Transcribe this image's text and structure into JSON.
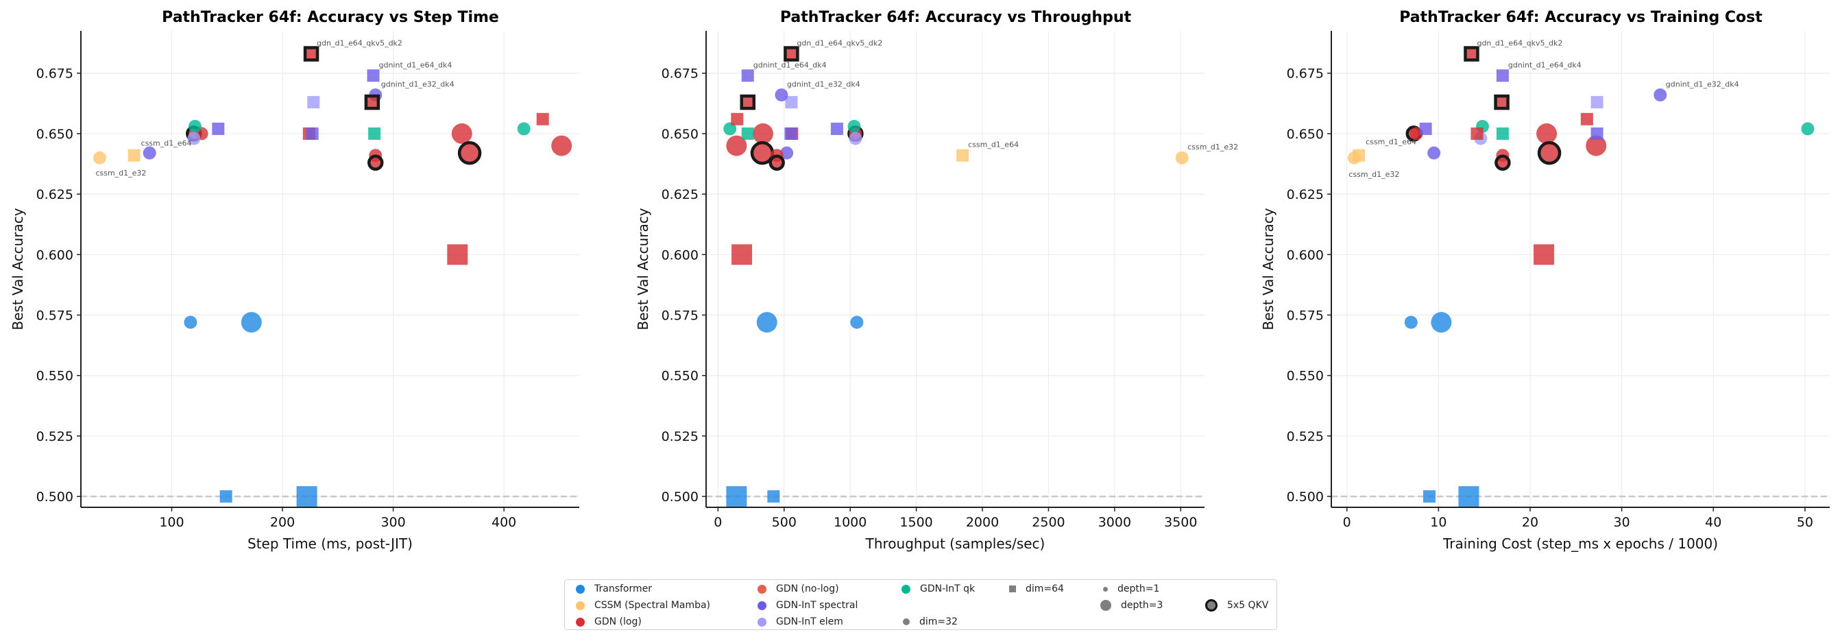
{
  "chart_data": [
    {
      "type": "scatter",
      "title": "PathTracker 64f: Accuracy vs Step Time",
      "xlabel": "Step Time (ms, post-JIT)",
      "ylabel": "Best Val Accuracy",
      "xlim": [
        18,
        468
      ],
      "ylim": [
        0.4955,
        0.6925
      ],
      "xticks": [
        "100",
        "200",
        "300",
        "400"
      ],
      "xtick_values": [
        100,
        200,
        300,
        400
      ],
      "yticks": [
        "0.500",
        "0.525",
        "0.550",
        "0.575",
        "0.600",
        "0.625",
        "0.650",
        "0.675"
      ],
      "ytick_values": [
        0.5,
        0.525,
        0.55,
        0.575,
        0.6,
        0.625,
        0.65,
        0.675
      ],
      "grid": true,
      "reference_line": 0.5,
      "xkey": "step_ms"
    },
    {
      "type": "scatter",
      "title": "PathTracker 64f: Accuracy vs Throughput",
      "xlabel": "Throughput (samples/sec)",
      "ylabel": "Best Val Accuracy",
      "xlim": [
        -90,
        3680
      ],
      "ylim": [
        0.4955,
        0.6925
      ],
      "xticks": [
        "0",
        "500",
        "1000",
        "1500",
        "2000",
        "2500",
        "3000",
        "3500"
      ],
      "xtick_values": [
        0,
        500,
        1000,
        1500,
        2000,
        2500,
        3000,
        3500
      ],
      "yticks": [
        "0.500",
        "0.525",
        "0.550",
        "0.575",
        "0.600",
        "0.625",
        "0.650",
        "0.675"
      ],
      "ytick_values": [
        0.5,
        0.525,
        0.55,
        0.575,
        0.6,
        0.625,
        0.65,
        0.675
      ],
      "grid": true,
      "reference_line": 0.5,
      "xkey": "throughput"
    },
    {
      "type": "scatter",
      "title": "PathTracker 64f: Accuracy vs Training Cost",
      "xlabel": "Training Cost (step_ms x epochs / 1000)",
      "ylabel": "Best Val Accuracy",
      "xlim": [
        -1.7,
        52.7
      ],
      "ylim": [
        0.4955,
        0.6925
      ],
      "xticks": [
        "0",
        "10",
        "20",
        "30",
        "40",
        "50"
      ],
      "xtick_values": [
        0,
        10,
        20,
        30,
        40,
        50
      ],
      "yticks": [
        "0.500",
        "0.525",
        "0.550",
        "0.575",
        "0.600",
        "0.625",
        "0.650",
        "0.675"
      ],
      "ytick_values": [
        0.5,
        0.525,
        0.55,
        0.575,
        0.6,
        0.625,
        0.65,
        0.675
      ],
      "grid": true,
      "reference_line": 0.5,
      "xkey": "cost"
    }
  ],
  "families": {
    "transformer": {
      "label": "Transformer",
      "color": "#1f88e5"
    },
    "cssm": {
      "label": "CSSM (Spectral Mamba)",
      "color": "#ffc46b"
    },
    "gdn_log": {
      "label": "GDN (log)",
      "color": "#d62f35"
    },
    "gdn_nolog": {
      "label": "GDN (no-log)",
      "color": "#e5604e"
    },
    "gdnint_spectral": {
      "label": "GDN-InT spectral",
      "color": "#6b5ce7"
    },
    "gdnint_elem": {
      "label": "GDN-InT elem",
      "color": "#a29bfe"
    },
    "gdnint_qk": {
      "label": "GDN-InT qk",
      "color": "#00b894"
    }
  },
  "points": [
    {
      "family": "transformer",
      "dim": 32,
      "depth": 1,
      "qkv5": false,
      "acc": 0.572,
      "step_ms": 117,
      "throughput": 1050,
      "cost": 7.0,
      "label": ""
    },
    {
      "family": "transformer",
      "dim": 32,
      "depth": 3,
      "qkv5": false,
      "acc": 0.572,
      "step_ms": 172,
      "throughput": 370,
      "cost": 10.3,
      "label": ""
    },
    {
      "family": "transformer",
      "dim": 64,
      "depth": 1,
      "qkv5": false,
      "acc": 0.5,
      "step_ms": 149,
      "throughput": 420,
      "cost": 9.0,
      "label": ""
    },
    {
      "family": "transformer",
      "dim": 64,
      "depth": 3,
      "qkv5": false,
      "acc": 0.5,
      "step_ms": 222,
      "throughput": 140,
      "cost": 13.3,
      "label": ""
    },
    {
      "family": "cssm",
      "dim": 32,
      "depth": 1,
      "qkv5": false,
      "acc": 0.64,
      "step_ms": 35,
      "throughput": 3510,
      "cost": 0.8,
      "label": "cssm_d1_e32"
    },
    {
      "family": "cssm",
      "dim": 64,
      "depth": 1,
      "qkv5": false,
      "acc": 0.641,
      "step_ms": 66,
      "throughput": 1850,
      "cost": 1.3,
      "label": "cssm_d1_e64"
    },
    {
      "family": "gdnint_spectral",
      "dim": 32,
      "depth": 1,
      "qkv5": false,
      "acc": 0.642,
      "step_ms": 80,
      "throughput": 520,
      "cost": 9.5,
      "label": ""
    },
    {
      "family": "gdn_log",
      "dim": 32,
      "depth": 1,
      "qkv5": true,
      "acc": 0.65,
      "step_ms": 120,
      "throughput": 1040,
      "cost": 7.3,
      "label": ""
    },
    {
      "family": "gdn_log",
      "dim": 32,
      "depth": 1,
      "qkv5": false,
      "acc": 0.65,
      "step_ms": 127,
      "throughput": 1040,
      "cost": 7.6,
      "label": ""
    },
    {
      "family": "gdnint_qk",
      "dim": 32,
      "depth": 1,
      "qkv5": false,
      "acc": 0.653,
      "step_ms": 121,
      "throughput": 1030,
      "cost": 14.8,
      "label": ""
    },
    {
      "family": "gdnint_elem",
      "dim": 32,
      "depth": 1,
      "qkv5": false,
      "acc": 0.648,
      "step_ms": 120,
      "throughput": 1040,
      "cost": 14.6,
      "label": ""
    },
    {
      "family": "gdnint_spectral",
      "dim": 64,
      "depth": 1,
      "qkv5": false,
      "acc": 0.652,
      "step_ms": 142,
      "throughput": 900,
      "cost": 8.6,
      "label": ""
    },
    {
      "family": "gdn_log",
      "dim": 64,
      "depth": 1,
      "qkv5": true,
      "acc": 0.683,
      "step_ms": 226,
      "throughput": 555,
      "cost": 13.6,
      "label": "gdn_d1_e64_qkv5_dk2"
    },
    {
      "family": "gdnint_elem",
      "dim": 64,
      "depth": 1,
      "qkv5": false,
      "acc": 0.663,
      "step_ms": 228,
      "throughput": 555,
      "cost": 27.3,
      "label": ""
    },
    {
      "family": "gdn_log",
      "dim": 64,
      "depth": 1,
      "qkv5": false,
      "acc": 0.65,
      "step_ms": 224,
      "throughput": 560,
      "cost": 14.2,
      "label": ""
    },
    {
      "family": "gdnint_spectral",
      "dim": 64,
      "depth": 1,
      "qkv5": false,
      "acc": 0.65,
      "step_ms": 227,
      "throughput": 550,
      "cost": 27.3,
      "label": ""
    },
    {
      "family": "gdnint_spectral",
      "dim": 64,
      "depth": 1,
      "qkv5": false,
      "acc": 0.674,
      "step_ms": 282,
      "throughput": 225,
      "cost": 17.0,
      "label": "gdnint_d1_e64_dk4"
    },
    {
      "family": "gdnint_spectral",
      "dim": 32,
      "depth": 1,
      "qkv5": false,
      "acc": 0.666,
      "step_ms": 284,
      "throughput": 480,
      "cost": 34.2,
      "label": "gdnint_d1_e32_dk4"
    },
    {
      "family": "gdn_log",
      "dim": 64,
      "depth": 1,
      "qkv5": true,
      "acc": 0.663,
      "step_ms": 281,
      "throughput": 225,
      "cost": 16.9,
      "label": ""
    },
    {
      "family": "gdnint_qk",
      "dim": 64,
      "depth": 1,
      "qkv5": false,
      "acc": 0.65,
      "step_ms": 283,
      "throughput": 225,
      "cost": 17.0,
      "label": ""
    },
    {
      "family": "gdn_log",
      "dim": 32,
      "depth": 1,
      "qkv5": false,
      "acc": 0.641,
      "step_ms": 284,
      "throughput": 445,
      "cost": 17.0,
      "label": ""
    },
    {
      "family": "gdn_log",
      "dim": 32,
      "depth": 1,
      "qkv5": true,
      "acc": 0.638,
      "step_ms": 284,
      "throughput": 445,
      "cost": 17.0,
      "label": ""
    },
    {
      "family": "gdn_log",
      "dim": 32,
      "depth": 3,
      "qkv5": false,
      "acc": 0.65,
      "step_ms": 362,
      "throughput": 340,
      "cost": 21.8,
      "label": ""
    },
    {
      "family": "gdn_log",
      "dim": 32,
      "depth": 3,
      "qkv5": true,
      "acc": 0.642,
      "step_ms": 369,
      "throughput": 335,
      "cost": 22.1,
      "label": ""
    },
    {
      "family": "gdn_log",
      "dim": 64,
      "depth": 3,
      "qkv5": false,
      "acc": 0.6,
      "step_ms": 358,
      "throughput": 180,
      "cost": 21.5,
      "label": ""
    },
    {
      "family": "gdnint_qk",
      "dim": 32,
      "depth": 1,
      "qkv5": false,
      "acc": 0.652,
      "step_ms": 418,
      "throughput": 90,
      "cost": 50.3,
      "label": ""
    },
    {
      "family": "gdn_log",
      "dim": 64,
      "depth": 1,
      "qkv5": false,
      "acc": 0.656,
      "step_ms": 435,
      "throughput": 145,
      "cost": 26.2,
      "label": ""
    },
    {
      "family": "gdn_log",
      "dim": 32,
      "depth": 3,
      "qkv5": false,
      "acc": 0.645,
      "step_ms": 452,
      "throughput": 140,
      "cost": 27.2,
      "label": ""
    }
  ],
  "legend": {
    "items": [
      {
        "kind": "family",
        "key": "transformer",
        "label": "Transformer"
      },
      {
        "kind": "family",
        "key": "cssm",
        "label": "CSSM (Spectral Mamba)"
      },
      {
        "kind": "family",
        "key": "gdn_log",
        "label": "GDN (log)"
      },
      {
        "kind": "family",
        "key": "gdn_nolog",
        "label": "GDN (no-log)"
      },
      {
        "kind": "family",
        "key": "gdnint_spectral",
        "label": "GDN-InT spectral"
      },
      {
        "kind": "family",
        "key": "gdnint_elem",
        "label": "GDN-InT elem"
      },
      {
        "kind": "family",
        "key": "gdnint_qk",
        "label": "GDN-InT qk"
      },
      {
        "kind": "shape",
        "key": "circle",
        "label": "dim=32"
      },
      {
        "kind": "shape",
        "key": "square",
        "label": "dim=64"
      },
      {
        "kind": "size",
        "key": "small",
        "label": "depth=1"
      },
      {
        "kind": "size",
        "key": "large",
        "label": "depth=3"
      },
      {
        "kind": "edge",
        "key": "qkv5",
        "label": "5x5 QKV"
      }
    ]
  }
}
